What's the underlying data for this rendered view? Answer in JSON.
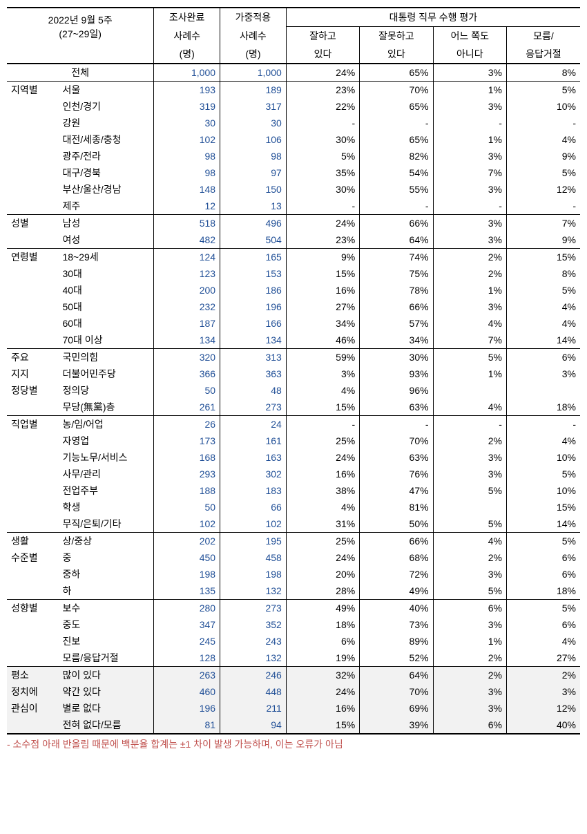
{
  "colors": {
    "text": "#000000",
    "numeric_blue": "#1f4e96",
    "footnote_red": "#c0504d",
    "highlight_bg": "#f2f2f2",
    "border": "#000000",
    "background": "#ffffff"
  },
  "header": {
    "title_line1": "2022년 9월 5주",
    "title_line2": "(27~29일)",
    "col1_line1": "조사완료",
    "col1_line2": "사례수",
    "col1_line3": "(명)",
    "col2_line1": "가중적용",
    "col2_line2": "사례수",
    "col2_line3": "(명)",
    "group_title": "대통령 직무 수행 평가",
    "sub1_line1": "잘하고",
    "sub1_line2": "있다",
    "sub2_line1": "잘못하고",
    "sub2_line2": "있다",
    "sub3_line1": "어느 쪽도",
    "sub3_line2": "아니다",
    "sub4_line1": "모름/",
    "sub4_line2": "응답거절"
  },
  "total_label": "전체",
  "total_row": {
    "n1": "1,000",
    "n2": "1,000",
    "p1": "24%",
    "p2": "65%",
    "p3": "3%",
    "p4": "8%"
  },
  "sections": [
    {
      "category": "지역별",
      "rows": [
        {
          "label": "서울",
          "n1": "193",
          "n2": "189",
          "p1": "23%",
          "p2": "70%",
          "p3": "1%",
          "p4": "5%"
        },
        {
          "label": "인천/경기",
          "n1": "319",
          "n2": "317",
          "p1": "22%",
          "p2": "65%",
          "p3": "3%",
          "p4": "10%"
        },
        {
          "label": "강원",
          "n1": "30",
          "n2": "30",
          "p1": "-",
          "p2": "-",
          "p3": "-",
          "p4": "-"
        },
        {
          "label": "대전/세종/충청",
          "n1": "102",
          "n2": "106",
          "p1": "30%",
          "p2": "65%",
          "p3": "1%",
          "p4": "4%"
        },
        {
          "label": "광주/전라",
          "n1": "98",
          "n2": "98",
          "p1": "5%",
          "p2": "82%",
          "p3": "3%",
          "p4": "9%"
        },
        {
          "label": "대구/경북",
          "n1": "98",
          "n2": "97",
          "p1": "35%",
          "p2": "54%",
          "p3": "7%",
          "p4": "5%"
        },
        {
          "label": "부산/울산/경남",
          "n1": "148",
          "n2": "150",
          "p1": "30%",
          "p2": "55%",
          "p3": "3%",
          "p4": "12%"
        },
        {
          "label": "제주",
          "n1": "12",
          "n2": "13",
          "p1": "-",
          "p2": "-",
          "p3": "-",
          "p4": "-"
        }
      ]
    },
    {
      "category": "성별",
      "rows": [
        {
          "label": "남성",
          "n1": "518",
          "n2": "496",
          "p1": "24%",
          "p2": "66%",
          "p3": "3%",
          "p4": "7%"
        },
        {
          "label": "여성",
          "n1": "482",
          "n2": "504",
          "p1": "23%",
          "p2": "64%",
          "p3": "3%",
          "p4": "9%"
        }
      ]
    },
    {
      "category": "연령별",
      "rows": [
        {
          "label": "18~29세",
          "n1": "124",
          "n2": "165",
          "p1": "9%",
          "p2": "74%",
          "p3": "2%",
          "p4": "15%"
        },
        {
          "label": "30대",
          "n1": "123",
          "n2": "153",
          "p1": "15%",
          "p2": "75%",
          "p3": "2%",
          "p4": "8%"
        },
        {
          "label": "40대",
          "n1": "200",
          "n2": "186",
          "p1": "16%",
          "p2": "78%",
          "p3": "1%",
          "p4": "5%"
        },
        {
          "label": "50대",
          "n1": "232",
          "n2": "196",
          "p1": "27%",
          "p2": "66%",
          "p3": "3%",
          "p4": "4%"
        },
        {
          "label": "60대",
          "n1": "187",
          "n2": "166",
          "p1": "34%",
          "p2": "57%",
          "p3": "4%",
          "p4": "4%"
        },
        {
          "label": "70대 이상",
          "n1": "134",
          "n2": "134",
          "p1": "46%",
          "p2": "34%",
          "p3": "7%",
          "p4": "14%"
        }
      ]
    },
    {
      "category": "주요\n지지\n정당별",
      "rows": [
        {
          "label": "국민의힘",
          "n1": "320",
          "n2": "313",
          "p1": "59%",
          "p2": "30%",
          "p3": "5%",
          "p4": "6%"
        },
        {
          "label": "더불어민주당",
          "n1": "366",
          "n2": "363",
          "p1": "3%",
          "p2": "93%",
          "p3": "1%",
          "p4": "3%"
        },
        {
          "label": "정의당",
          "n1": "50",
          "n2": "48",
          "p1": "4%",
          "p2": "96%",
          "p3": "",
          "p4": ""
        },
        {
          "label": "무당(無黨)층",
          "n1": "261",
          "n2": "273",
          "p1": "15%",
          "p2": "63%",
          "p3": "4%",
          "p4": "18%"
        }
      ]
    },
    {
      "category": "직업별",
      "rows": [
        {
          "label": "농/임/어업",
          "n1": "26",
          "n2": "24",
          "p1": "-",
          "p2": "-",
          "p3": "-",
          "p4": "-"
        },
        {
          "label": "자영업",
          "n1": "173",
          "n2": "161",
          "p1": "25%",
          "p2": "70%",
          "p3": "2%",
          "p4": "4%"
        },
        {
          "label": "기능노무/서비스",
          "n1": "168",
          "n2": "163",
          "p1": "24%",
          "p2": "63%",
          "p3": "3%",
          "p4": "10%"
        },
        {
          "label": "사무/관리",
          "n1": "293",
          "n2": "302",
          "p1": "16%",
          "p2": "76%",
          "p3": "3%",
          "p4": "5%"
        },
        {
          "label": "전업주부",
          "n1": "188",
          "n2": "183",
          "p1": "38%",
          "p2": "47%",
          "p3": "5%",
          "p4": "10%"
        },
        {
          "label": "학생",
          "n1": "50",
          "n2": "66",
          "p1": "4%",
          "p2": "81%",
          "p3": "",
          "p4": "15%"
        },
        {
          "label": "무직/은퇴/기타",
          "n1": "102",
          "n2": "102",
          "p1": "31%",
          "p2": "50%",
          "p3": "5%",
          "p4": "14%"
        }
      ]
    },
    {
      "category": "생활\n수준별",
      "rows": [
        {
          "label": "상/중상",
          "n1": "202",
          "n2": "195",
          "p1": "25%",
          "p2": "66%",
          "p3": "4%",
          "p4": "5%"
        },
        {
          "label": "중",
          "n1": "450",
          "n2": "458",
          "p1": "24%",
          "p2": "68%",
          "p3": "2%",
          "p4": "6%"
        },
        {
          "label": "중하",
          "n1": "198",
          "n2": "198",
          "p1": "20%",
          "p2": "72%",
          "p3": "3%",
          "p4": "6%"
        },
        {
          "label": "하",
          "n1": "135",
          "n2": "132",
          "p1": "28%",
          "p2": "49%",
          "p3": "5%",
          "p4": "18%"
        }
      ]
    },
    {
      "category": "성향별",
      "rows": [
        {
          "label": "보수",
          "n1": "280",
          "n2": "273",
          "p1": "49%",
          "p2": "40%",
          "p3": "6%",
          "p4": "5%"
        },
        {
          "label": "중도",
          "n1": "347",
          "n2": "352",
          "p1": "18%",
          "p2": "73%",
          "p3": "3%",
          "p4": "6%"
        },
        {
          "label": "진보",
          "n1": "245",
          "n2": "243",
          "p1": "6%",
          "p2": "89%",
          "p3": "1%",
          "p4": "4%"
        },
        {
          "label": "모름/응답거절",
          "n1": "128",
          "n2": "132",
          "p1": "19%",
          "p2": "52%",
          "p3": "2%",
          "p4": "27%"
        }
      ]
    },
    {
      "category": "평소\n정치에\n관심이",
      "highlight": true,
      "rows": [
        {
          "label": "많이 있다",
          "n1": "263",
          "n2": "246",
          "p1": "32%",
          "p2": "64%",
          "p3": "2%",
          "p4": "2%"
        },
        {
          "label": "약간 있다",
          "n1": "460",
          "n2": "448",
          "p1": "24%",
          "p2": "70%",
          "p3": "3%",
          "p4": "3%"
        },
        {
          "label": "별로 없다",
          "n1": "196",
          "n2": "211",
          "p1": "16%",
          "p2": "69%",
          "p3": "3%",
          "p4": "12%"
        },
        {
          "label": "전혀 없다/모름",
          "n1": "81",
          "n2": "94",
          "p1": "15%",
          "p2": "39%",
          "p3": "6%",
          "p4": "40%"
        }
      ]
    }
  ],
  "footnote": "- 소수점 아래 반올림 때문에 백분율 합계는 ±1 차이 발생 가능하며, 이는 오류가 아님"
}
